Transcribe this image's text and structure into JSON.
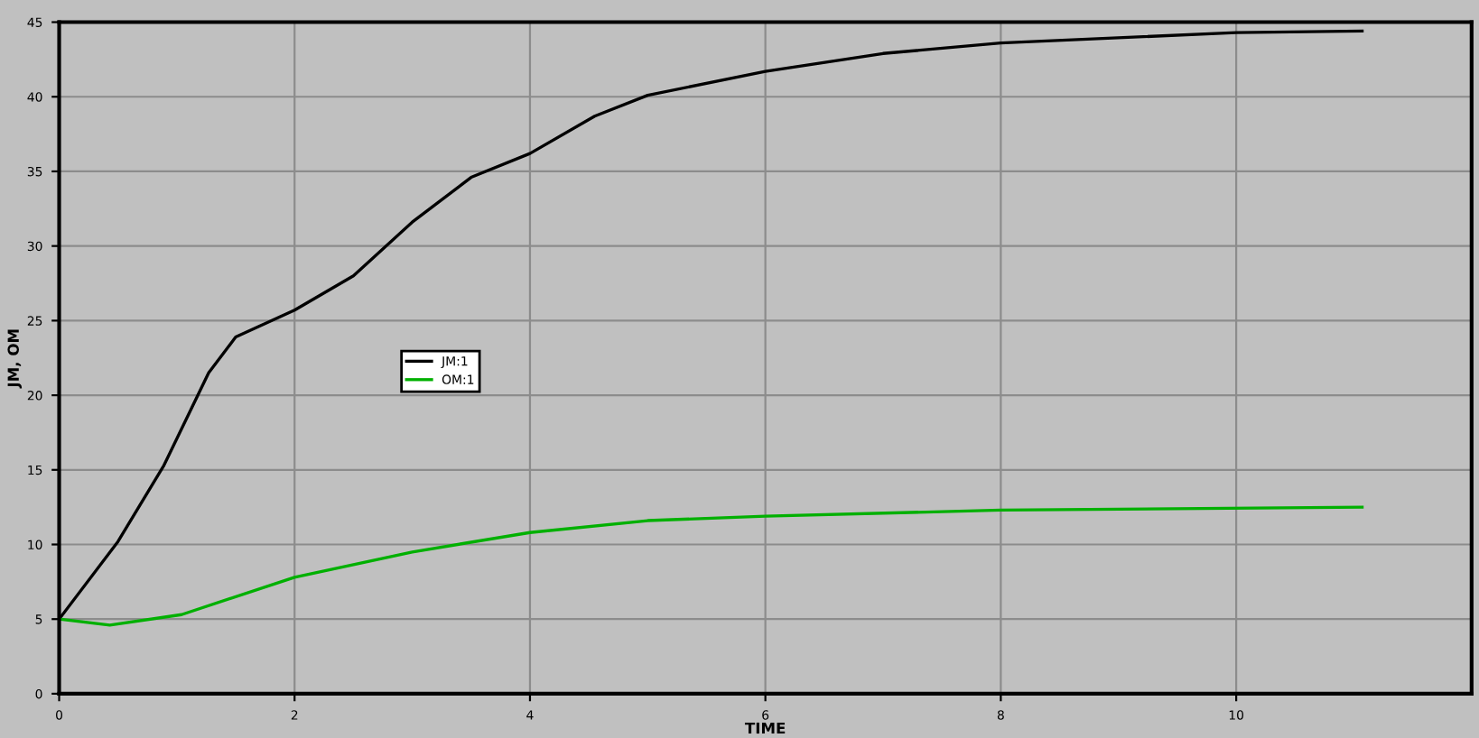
{
  "chart_data": {
    "type": "line",
    "xlabel": "TIME",
    "ylabel": "JM, OM",
    "xlim": [
      0,
      12
    ],
    "xticks": [
      0,
      2,
      4,
      6,
      8,
      10
    ],
    "ylim": [
      0,
      45
    ],
    "yticks": [
      0,
      5,
      10,
      15,
      20,
      25,
      30,
      35,
      40,
      45
    ],
    "grid": true,
    "legend": "left",
    "marker": "none",
    "line_style": "solid",
    "series": [
      {
        "name": "JM:1",
        "color": "#000000",
        "x": [
          0,
          0.5,
          0.89,
          1.27,
          1.5,
          2,
          2.5,
          3,
          3.5,
          4,
          4.55,
          5,
          6,
          7,
          8,
          10,
          11.07
        ],
        "values": [
          5,
          10.2,
          15.3,
          21.5,
          23.9,
          25.7,
          28,
          31.6,
          34.6,
          36.2,
          38.7,
          40.1,
          41.7,
          42.9,
          43.6,
          44.3,
          44.4
        ]
      },
      {
        "name": "OM:1",
        "color": "#00b000",
        "x": [
          0,
          0.43,
          1.04,
          2,
          3,
          4,
          5,
          6,
          8,
          11.07
        ],
        "values": [
          5,
          4.6,
          5.3,
          7.8,
          9.5,
          10.8,
          11.6,
          11.9,
          12.3,
          12.5
        ]
      }
    ]
  }
}
